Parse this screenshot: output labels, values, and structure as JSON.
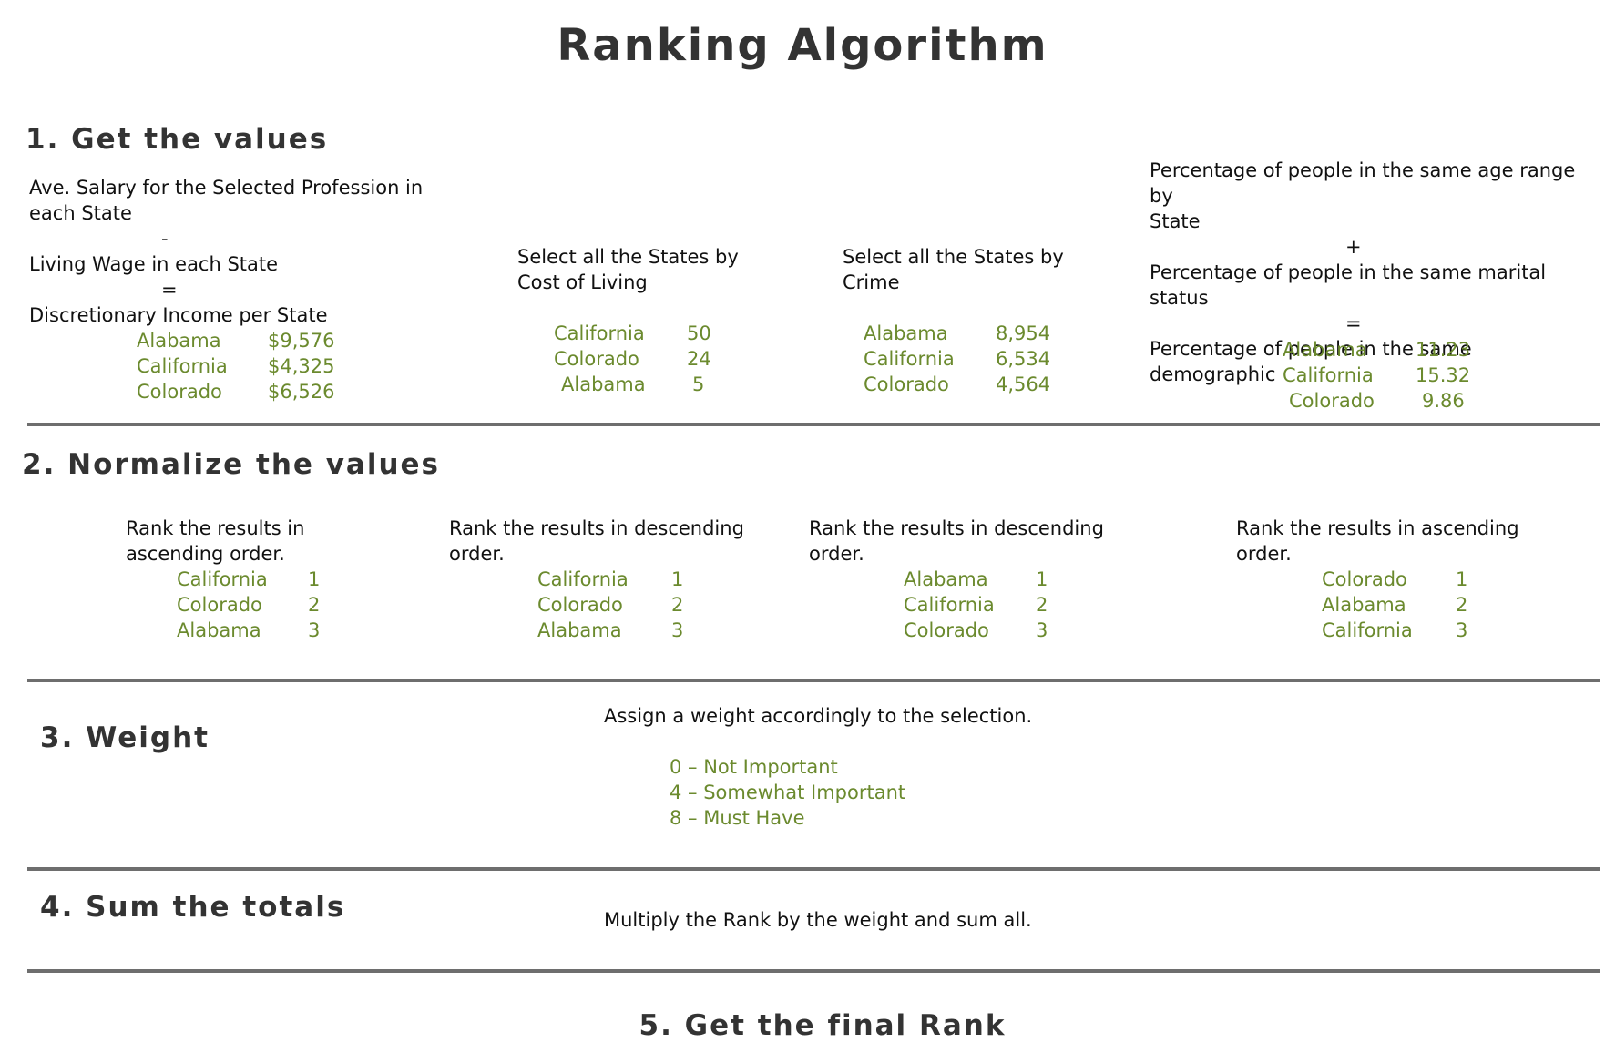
{
  "title": "Ranking Algorithm",
  "accent_color": "#6b8a2e",
  "step1": {
    "heading": "1. Get the values",
    "salary": {
      "line1": "Ave. Salary for the Selected Profession in",
      "line2": "each State",
      "minus": "-",
      "line3": "Living Wage in each State",
      "equals": "=",
      "line4": "Discretionary Income per State",
      "rows": [
        {
          "state": "Alabama",
          "value": "$9,576"
        },
        {
          "state": "California",
          "value": "$4,325"
        },
        {
          "state": "Colorado",
          "value": "$6,526"
        }
      ]
    },
    "cost": {
      "line1": "Select all the States by",
      "line2": "Cost of Living",
      "rows": [
        {
          "state": "California",
          "value": "50"
        },
        {
          "state": "Colorado",
          "value": "24"
        },
        {
          "state": "Alabama",
          "value": "5"
        }
      ]
    },
    "crime": {
      "line1": "Select all the States by",
      "line2": "Crime",
      "rows": [
        {
          "state": "Alabama",
          "value": "8,954"
        },
        {
          "state": "California",
          "value": "6,534"
        },
        {
          "state": "Colorado",
          "value": "4,564"
        }
      ]
    },
    "demographic": {
      "line1": "Percentage of people in the same age range by",
      "line2": "State",
      "plus": "+",
      "line3": "Percentage of people in the same marital status",
      "equals": "=",
      "line4": "Percentage of people in the same demographic",
      "rows": [
        {
          "state": "Alabama",
          "value": "11.23"
        },
        {
          "state": "California",
          "value": "15.32"
        },
        {
          "state": "Colorado",
          "value": "9.86"
        }
      ]
    }
  },
  "step2": {
    "heading": "2. Normalize the values",
    "columns": [
      {
        "line1": "Rank the results in",
        "line2": "ascending order.",
        "rows": [
          {
            "state": "California",
            "rank": "1"
          },
          {
            "state": "Colorado",
            "rank": "2"
          },
          {
            "state": "Alabama",
            "rank": "3"
          }
        ]
      },
      {
        "line1": "Rank the results in descending",
        "line2": "order.",
        "rows": [
          {
            "state": "California",
            "rank": "1"
          },
          {
            "state": "Colorado",
            "rank": "2"
          },
          {
            "state": "Alabama",
            "rank": "3"
          }
        ]
      },
      {
        "line1": "Rank the results in descending",
        "line2": "order.",
        "rows": [
          {
            "state": "Alabama",
            "rank": "1"
          },
          {
            "state": "California",
            "rank": "2"
          },
          {
            "state": "Colorado",
            "rank": "3"
          }
        ]
      },
      {
        "line1": "Rank the results in ascending",
        "line2": "order.",
        "rows": [
          {
            "state": "Colorado",
            "rank": "1"
          },
          {
            "state": "Alabama",
            "rank": "2"
          },
          {
            "state": "California",
            "rank": "3"
          }
        ]
      }
    ]
  },
  "step3": {
    "heading": "3. Weight",
    "description": "Assign a weight accordingly to the selection.",
    "options": [
      "0 – Not Important",
      "4 – Somewhat Important",
      "8 – Must Have"
    ]
  },
  "step4": {
    "heading": "4. Sum the totals",
    "description": "Multiply the Rank by the weight and sum all."
  },
  "step5": {
    "heading": "5. Get the final Rank"
  }
}
